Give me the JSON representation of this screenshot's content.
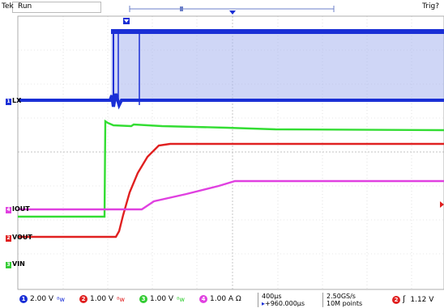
{
  "header": {
    "brand": "Tek",
    "acq_state": "Run",
    "trigger_state": "Trig?"
  },
  "channels": [
    {
      "num": "1",
      "label": "LX",
      "color": "#1a2fd6",
      "scale": "2.00 V"
    },
    {
      "num": "2",
      "label": "VOUT",
      "color": "#e02020",
      "scale": "1.00 V"
    },
    {
      "num": "3",
      "label": "VIN",
      "color": "#33cc33",
      "scale": "1.00 V"
    },
    {
      "num": "4",
      "label": "IOUT",
      "color": "#e040e0",
      "scale": "1.00 A Ω"
    }
  ],
  "timebase": {
    "scale": "400µs",
    "delay": "+960.000µs"
  },
  "acquisition": {
    "rate": "2.50GS/s",
    "record": "10M points"
  },
  "trigger": {
    "source": "2",
    "slope_icon": "rising-edge-icon",
    "level": "1.12 V"
  },
  "colors": {
    "grid": "#c8c8c8",
    "background": "#ffffff"
  }
}
